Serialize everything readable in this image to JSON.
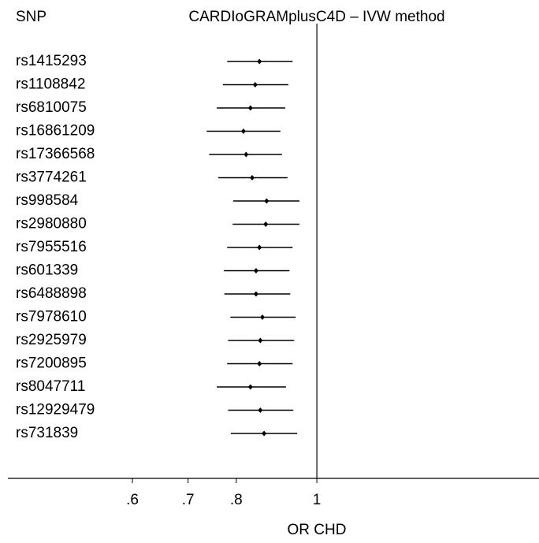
{
  "chart_data": {
    "type": "forest",
    "title": "CARDIoGRAMplusC4D – IVW method",
    "category_header": "SNP",
    "xlabel": "OR CHD",
    "categories": [
      "rs1415293",
      "rs1108842",
      "rs6810075",
      "rs16861209",
      "rs17366568",
      "rs3774261",
      "rs998584",
      "rs2980880",
      "rs7955516",
      "rs601339",
      "rs6488898",
      "rs7978610",
      "rs2925979",
      "rs7200895",
      "rs8047711",
      "rs12929479",
      "rs731839"
    ],
    "values": [
      0.853,
      0.843,
      0.832,
      0.816,
      0.822,
      0.836,
      0.87,
      0.868,
      0.853,
      0.845,
      0.845,
      0.86,
      0.855,
      0.853,
      0.832,
      0.855,
      0.864
    ],
    "lower": [
      0.78,
      0.771,
      0.758,
      0.737,
      0.742,
      0.761,
      0.793,
      0.792,
      0.78,
      0.773,
      0.774,
      0.787,
      0.782,
      0.78,
      0.758,
      0.782,
      0.788
    ],
    "upper": [
      0.935,
      0.924,
      0.916,
      0.904,
      0.908,
      0.922,
      0.953,
      0.953,
      0.935,
      0.927,
      0.929,
      0.943,
      0.939,
      0.935,
      0.918,
      0.937,
      0.947
    ],
    "xlim": [
      0.425,
      1.85
    ],
    "xscale": "log",
    "xticks": [
      {
        "value": 0.6,
        "label": ".6"
      },
      {
        "value": 0.7,
        "label": ".7"
      },
      {
        "value": 0.8,
        "label": ".8"
      },
      1
    ],
    "reference_line": 1,
    "color": "#000000"
  }
}
